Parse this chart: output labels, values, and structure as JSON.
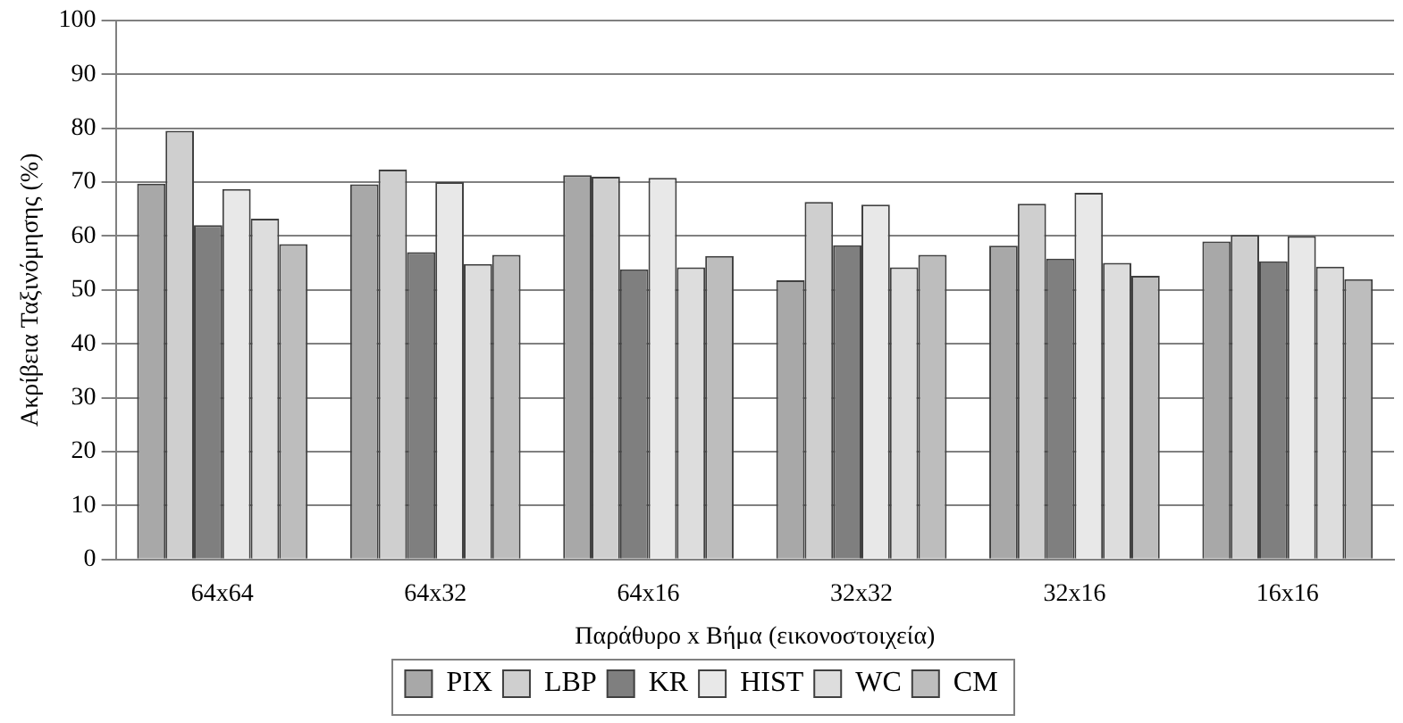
{
  "chart_data": {
    "type": "bar",
    "xlabel": "Παράθυρο x Βήμα (εικονοστοιχεία)",
    "ylabel": "Ακρίβεια Ταξινόμησης (%)",
    "categories": [
      "64x64",
      "64x32",
      "64x16",
      "32x32",
      "32x16",
      "16x16"
    ],
    "series": [
      {
        "name": "PIX",
        "color": "#a8a8a8",
        "values": [
          69.7,
          69.6,
          71.3,
          51.8,
          58.2,
          59
        ]
      },
      {
        "name": "LBP",
        "color": "#cfcfcf",
        "values": [
          79.5,
          72.3,
          71,
          66.3,
          66,
          60.2
        ]
      },
      {
        "name": "KR",
        "color": "#7f7f7f",
        "values": [
          62,
          57,
          53.8,
          58.3,
          55.8,
          55.3
        ]
      },
      {
        "name": "HIST",
        "color": "#e8e8e8",
        "values": [
          68.7,
          70,
          70.8,
          65.8,
          68,
          60
        ]
      },
      {
        "name": "WC",
        "color": "#dddddd",
        "values": [
          63.2,
          54.8,
          54.2,
          54.2,
          55,
          54.3
        ]
      },
      {
        "name": "CM",
        "color": "#bdbdbd",
        "values": [
          58.5,
          56.5,
          56.3,
          56.5,
          52.6,
          52
        ]
      }
    ],
    "ylim": [
      0,
      100
    ],
    "yticks": [
      0,
      10,
      20,
      30,
      40,
      50,
      60,
      70,
      80,
      90,
      100
    ],
    "grid": "y",
    "legend": "bottom"
  }
}
